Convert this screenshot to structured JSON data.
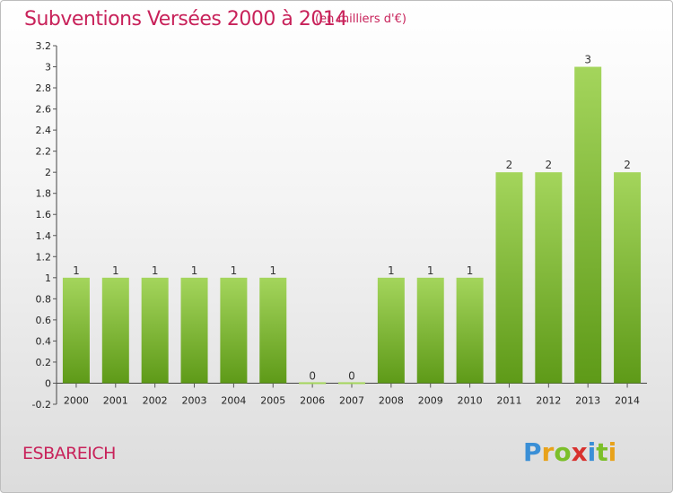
{
  "header": {
    "title": "Subventions Versées 2000 à 2014",
    "subtitle": "(en milliers d'€)"
  },
  "footer": {
    "commune": "ESBAREICH",
    "logo_letters": [
      "P",
      "r",
      "o",
      "x",
      "i",
      "t",
      "i"
    ],
    "logo_colors": [
      "#3a8fd6",
      "#e8a21a",
      "#7cbf2a",
      "#d8322f",
      "#3a8fd6",
      "#7cbf2a",
      "#e8a21a"
    ]
  },
  "colors": {
    "bar_light": "#a4d55c",
    "bar_dark": "#5e9a18",
    "axis": "#444444",
    "grid_tick": "#555555"
  },
  "chart_data": {
    "type": "bar",
    "title": "Subventions Versées 2000 à 2014",
    "subtitle": "(en milliers d'€)",
    "xlabel": "",
    "ylabel": "",
    "categories": [
      "2000",
      "2001",
      "2002",
      "2003",
      "2004",
      "2005",
      "2006",
      "2007",
      "2008",
      "2009",
      "2010",
      "2011",
      "2012",
      "2013",
      "2014"
    ],
    "values": [
      1,
      1,
      1,
      1,
      1,
      1,
      0,
      0,
      1,
      1,
      1,
      2,
      2,
      3,
      2
    ],
    "data_labels": [
      "1",
      "1",
      "1",
      "1",
      "1",
      "1",
      "0",
      "0",
      "1",
      "1",
      "1",
      "2",
      "2",
      "3",
      "2"
    ],
    "ylim": [
      -0.2,
      3.2
    ],
    "yticks": [
      "-0.2",
      "0",
      "0.2",
      "0.4",
      "0.6",
      "0.8",
      "1",
      "1.2",
      "1.4",
      "1.6",
      "1.8",
      "2",
      "2.2",
      "2.4",
      "2.6",
      "2.8",
      "3",
      "3.2"
    ],
    "ytick_values": [
      -0.2,
      0,
      0.2,
      0.4,
      0.6,
      0.8,
      1,
      1.2,
      1.4,
      1.6,
      1.8,
      2,
      2.2,
      2.4,
      2.6,
      2.8,
      3,
      3.2
    ],
    "grid": false,
    "legend": "none"
  }
}
